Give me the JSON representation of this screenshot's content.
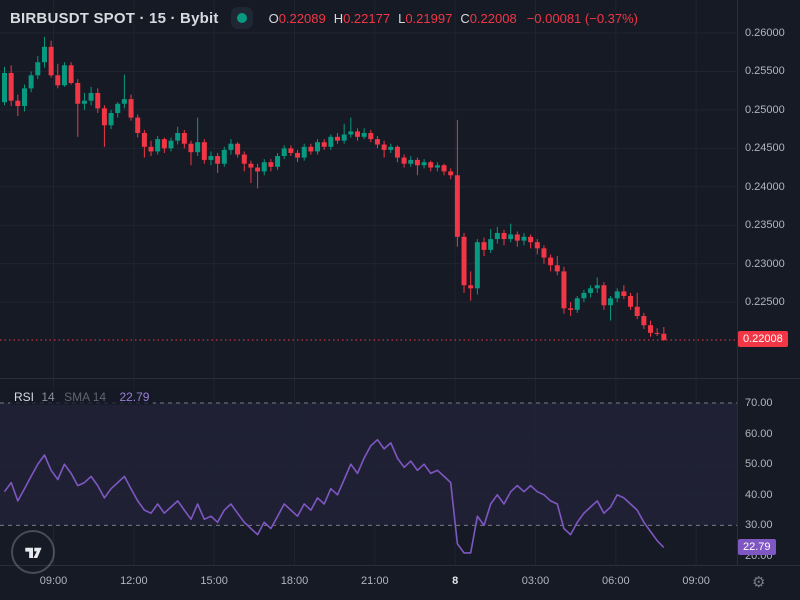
{
  "header": {
    "symbol_title": "BIRBUSDT SPOT · 15 · Bybit",
    "ohlc": {
      "items": [
        {
          "label": "O",
          "value": "0.22089"
        },
        {
          "label": "H",
          "value": "0.22177"
        },
        {
          "label": "L",
          "value": "0.21997"
        },
        {
          "label": "C",
          "value": "0.22008"
        }
      ],
      "change": "−0.00081 (−0.37%)"
    }
  },
  "rsi_header": {
    "title": "RSI",
    "params": "14",
    "sma": "SMA 14",
    "value": "22.79"
  },
  "price_axis": {
    "ticks": [
      "0.26000",
      "0.25500",
      "0.25000",
      "0.24500",
      "0.24000",
      "0.23500",
      "0.23000",
      "0.22500"
    ],
    "badge": "0.22008"
  },
  "rsi_axis": {
    "ticks": [
      "70.00",
      "60.00",
      "50.00",
      "40.00",
      "30.00",
      "20.00"
    ],
    "badge": "22.79"
  },
  "time_axis": {
    "ticks": [
      "09:00",
      "12:00",
      "15:00",
      "18:00",
      "21:00",
      "8",
      "03:00",
      "06:00",
      "09:00"
    ],
    "gear_icon": "⚙"
  },
  "colors": {
    "background": "#161a25",
    "grid": "#1f2431",
    "up": "#089981",
    "down": "#f23645",
    "rsi_line": "#7e57c2",
    "band_fill": "rgba(126,87,194,0.10)",
    "dashed_level": "#787b86",
    "price_line": "#f23645",
    "axis_text": "#b2b5be",
    "separator": "#2a2e39",
    "status_dot": "#089981"
  },
  "chart_data": [
    {
      "type": "candlestick",
      "title": "BIRBUSDT SPOT · 15 · Bybit",
      "exchange": "Bybit",
      "interval": "15",
      "ylim": [
        0.2185,
        0.2615
      ],
      "y_ticks": [
        0.26,
        0.255,
        0.25,
        0.245,
        0.24,
        0.235,
        0.23,
        0.225
      ],
      "x_labels": [
        "09:00",
        "12:00",
        "15:00",
        "18:00",
        "21:00",
        "8",
        "03:00",
        "06:00",
        "09:00"
      ],
      "last_price": 0.22008,
      "last_candle": {
        "o": 0.22089,
        "h": 0.22177,
        "l": 0.21997,
        "c": 0.22008
      },
      "candles": [
        [
          0.251,
          0.2556,
          0.2506,
          0.2548
        ],
        [
          0.2548,
          0.2558,
          0.2505,
          0.2512
        ],
        [
          0.2512,
          0.252,
          0.2492,
          0.2505
        ],
        [
          0.2505,
          0.2533,
          0.2498,
          0.2528
        ],
        [
          0.2528,
          0.255,
          0.2523,
          0.2545
        ],
        [
          0.2545,
          0.257,
          0.254,
          0.2562
        ],
        [
          0.2562,
          0.2595,
          0.2555,
          0.2582
        ],
        [
          0.2582,
          0.259,
          0.2542,
          0.2545
        ],
        [
          0.2545,
          0.256,
          0.2528,
          0.2532
        ],
        [
          0.2532,
          0.2562,
          0.253,
          0.2558
        ],
        [
          0.2558,
          0.2562,
          0.2533,
          0.2535
        ],
        [
          0.2535,
          0.254,
          0.2465,
          0.2508
        ],
        [
          0.2508,
          0.2522,
          0.25,
          0.2512
        ],
        [
          0.2512,
          0.253,
          0.2506,
          0.2522
        ],
        [
          0.2522,
          0.2528,
          0.2496,
          0.2502
        ],
        [
          0.2502,
          0.2506,
          0.2452,
          0.248
        ],
        [
          0.248,
          0.25,
          0.2475,
          0.2496
        ],
        [
          0.2496,
          0.251,
          0.249,
          0.2508
        ],
        [
          0.2508,
          0.2546,
          0.2502,
          0.2514
        ],
        [
          0.2514,
          0.252,
          0.2486,
          0.249
        ],
        [
          0.249,
          0.2494,
          0.2464,
          0.247
        ],
        [
          0.247,
          0.2474,
          0.2438,
          0.2452
        ],
        [
          0.2452,
          0.246,
          0.244,
          0.2446
        ],
        [
          0.2446,
          0.2466,
          0.2442,
          0.2462
        ],
        [
          0.2462,
          0.2464,
          0.2444,
          0.245
        ],
        [
          0.245,
          0.2464,
          0.2446,
          0.246
        ],
        [
          0.246,
          0.2478,
          0.2455,
          0.247
        ],
        [
          0.247,
          0.2474,
          0.245,
          0.2456
        ],
        [
          0.2456,
          0.246,
          0.2428,
          0.2445
        ],
        [
          0.2445,
          0.249,
          0.244,
          0.2458
        ],
        [
          0.2458,
          0.2462,
          0.243,
          0.2435
        ],
        [
          0.2435,
          0.2446,
          0.2428,
          0.244
        ],
        [
          0.244,
          0.2444,
          0.2418,
          0.243
        ],
        [
          0.243,
          0.2452,
          0.2426,
          0.2448
        ],
        [
          0.2448,
          0.2462,
          0.2442,
          0.2456
        ],
        [
          0.2456,
          0.2458,
          0.2438,
          0.2442
        ],
        [
          0.2442,
          0.2446,
          0.242,
          0.243
        ],
        [
          0.243,
          0.2434,
          0.2405,
          0.2425
        ],
        [
          0.2425,
          0.243,
          0.2398,
          0.242
        ],
        [
          0.242,
          0.2436,
          0.2415,
          0.2432
        ],
        [
          0.2432,
          0.2436,
          0.242,
          0.2426
        ],
        [
          0.2426,
          0.2444,
          0.2422,
          0.244
        ],
        [
          0.244,
          0.2454,
          0.2436,
          0.245
        ],
        [
          0.245,
          0.2454,
          0.244,
          0.2444
        ],
        [
          0.2444,
          0.2448,
          0.2432,
          0.2438
        ],
        [
          0.2438,
          0.2456,
          0.2434,
          0.2452
        ],
        [
          0.2452,
          0.2456,
          0.2442,
          0.2446
        ],
        [
          0.2446,
          0.2462,
          0.2442,
          0.2458
        ],
        [
          0.2458,
          0.2462,
          0.2448,
          0.2452
        ],
        [
          0.2452,
          0.2468,
          0.2448,
          0.2465
        ],
        [
          0.2465,
          0.247,
          0.2456,
          0.246
        ],
        [
          0.246,
          0.2482,
          0.2456,
          0.2468
        ],
        [
          0.2468,
          0.249,
          0.2464,
          0.2472
        ],
        [
          0.2472,
          0.2476,
          0.246,
          0.2465
        ],
        [
          0.2465,
          0.2476,
          0.2462,
          0.247
        ],
        [
          0.247,
          0.2474,
          0.2458,
          0.2462
        ],
        [
          0.2462,
          0.2466,
          0.245,
          0.2455
        ],
        [
          0.2455,
          0.246,
          0.2438,
          0.2448
        ],
        [
          0.2448,
          0.2456,
          0.2444,
          0.2452
        ],
        [
          0.2452,
          0.2454,
          0.2432,
          0.2438
        ],
        [
          0.2438,
          0.2442,
          0.2425,
          0.243
        ],
        [
          0.243,
          0.244,
          0.2426,
          0.2435
        ],
        [
          0.2435,
          0.2438,
          0.2415,
          0.2428
        ],
        [
          0.2428,
          0.2436,
          0.2424,
          0.2432
        ],
        [
          0.2432,
          0.2434,
          0.242,
          0.2425
        ],
        [
          0.2425,
          0.2432,
          0.242,
          0.2428
        ],
        [
          0.2428,
          0.243,
          0.2415,
          0.242
        ],
        [
          0.242,
          0.2424,
          0.241,
          0.2415
        ],
        [
          0.2415,
          0.2487,
          0.2322,
          0.2335
        ],
        [
          0.2335,
          0.234,
          0.2262,
          0.2272
        ],
        [
          0.2272,
          0.229,
          0.2252,
          0.2268
        ],
        [
          0.2268,
          0.2332,
          0.226,
          0.2328
        ],
        [
          0.2328,
          0.2334,
          0.231,
          0.2318
        ],
        [
          0.2318,
          0.2345,
          0.2314,
          0.2332
        ],
        [
          0.2332,
          0.2348,
          0.2326,
          0.234
        ],
        [
          0.234,
          0.2344,
          0.2324,
          0.2332
        ],
        [
          0.2332,
          0.2352,
          0.2328,
          0.2338
        ],
        [
          0.2338,
          0.2342,
          0.2322,
          0.233
        ],
        [
          0.233,
          0.234,
          0.2324,
          0.2335
        ],
        [
          0.2335,
          0.2338,
          0.232,
          0.2328
        ],
        [
          0.2328,
          0.2332,
          0.2312,
          0.232
        ],
        [
          0.232,
          0.2324,
          0.23,
          0.2308
        ],
        [
          0.2308,
          0.2312,
          0.229,
          0.2298
        ],
        [
          0.2298,
          0.231,
          0.2285,
          0.229
        ],
        [
          0.229,
          0.2296,
          0.2235,
          0.2242
        ],
        [
          0.2242,
          0.225,
          0.2232,
          0.224
        ],
        [
          0.224,
          0.2258,
          0.2236,
          0.2255
        ],
        [
          0.2255,
          0.2266,
          0.225,
          0.2262
        ],
        [
          0.2262,
          0.2272,
          0.2256,
          0.2268
        ],
        [
          0.2268,
          0.2282,
          0.2262,
          0.2272
        ],
        [
          0.2272,
          0.2276,
          0.224,
          0.2246
        ],
        [
          0.2246,
          0.2258,
          0.2226,
          0.2255
        ],
        [
          0.2255,
          0.2268,
          0.225,
          0.2264
        ],
        [
          0.2264,
          0.2272,
          0.2254,
          0.2258
        ],
        [
          0.2258,
          0.2262,
          0.224,
          0.2244
        ],
        [
          0.2244,
          0.2262,
          0.2228,
          0.2232
        ],
        [
          0.2232,
          0.2236,
          0.2215,
          0.222
        ],
        [
          0.222,
          0.2226,
          0.2205,
          0.221
        ],
        [
          0.221,
          0.2216,
          0.2206,
          0.22089
        ],
        [
          0.22089,
          0.22177,
          0.21997,
          0.22008
        ]
      ]
    },
    {
      "type": "line",
      "title": "RSI 14",
      "ylim": [
        15,
        75
      ],
      "y_ticks": [
        70,
        60,
        50,
        40,
        30,
        20
      ],
      "overbought_level": 70,
      "oversold_level": 30,
      "last_value": 22.79,
      "values": [
        41,
        44,
        38,
        42,
        46,
        50,
        53,
        48,
        45,
        50,
        47,
        43,
        44,
        46,
        43,
        39,
        42,
        44,
        46,
        42,
        38,
        35,
        34,
        37,
        34,
        36,
        38,
        35,
        32,
        37,
        32,
        33,
        31,
        35,
        37,
        34,
        31,
        29,
        27,
        31,
        29,
        33,
        37,
        35,
        33,
        37,
        35,
        39,
        37,
        42,
        40,
        45,
        50,
        47,
        52,
        56,
        58,
        55,
        57,
        52,
        49,
        51,
        48,
        50,
        47,
        48,
        46,
        44,
        24,
        21,
        21,
        33,
        30,
        37,
        40,
        37,
        41,
        43,
        41,
        43,
        41,
        40,
        38,
        37,
        29,
        27,
        31,
        34,
        36,
        38,
        34,
        36,
        40,
        39,
        37,
        35,
        31,
        28,
        25,
        22.79
      ]
    }
  ]
}
